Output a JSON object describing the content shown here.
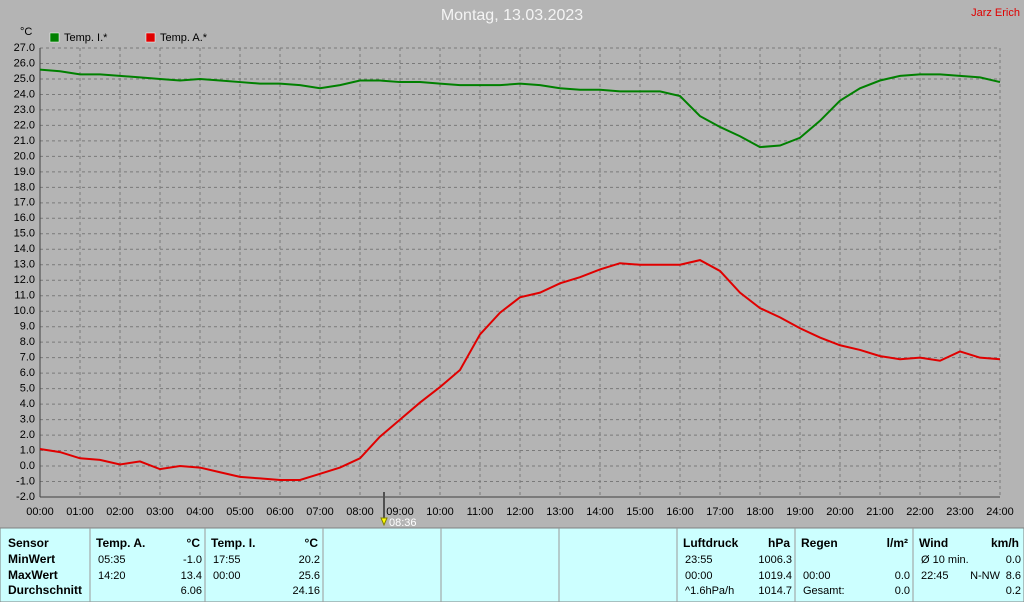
{
  "chart_data": {
    "type": "line",
    "title": "Montag, 13.03.2023",
    "author": "Jarz Erich",
    "y_label": "°C",
    "x": [
      0,
      0.5,
      1,
      1.5,
      2,
      2.5,
      3,
      3.5,
      4,
      4.5,
      5,
      5.5,
      6,
      6.5,
      7,
      7.5,
      8,
      8.5,
      9,
      9.5,
      10,
      10.5,
      11,
      11.5,
      12,
      12.5,
      13,
      13.5,
      14,
      14.5,
      15,
      15.5,
      16,
      16.5,
      17,
      17.5,
      18,
      18.5,
      19,
      19.5,
      20,
      20.5,
      21,
      21.5,
      22,
      22.5,
      23,
      23.5,
      24
    ],
    "series": [
      {
        "name": "Temp. I.*",
        "color": "#008000",
        "values": [
          25.6,
          25.5,
          25.3,
          25.3,
          25.2,
          25.1,
          25.0,
          24.9,
          25.0,
          24.9,
          24.8,
          24.7,
          24.7,
          24.6,
          24.4,
          24.6,
          24.9,
          24.9,
          24.8,
          24.8,
          24.7,
          24.6,
          24.6,
          24.6,
          24.7,
          24.6,
          24.4,
          24.3,
          24.3,
          24.2,
          24.2,
          24.2,
          23.9,
          22.6,
          21.9,
          21.3,
          20.6,
          20.7,
          21.2,
          22.3,
          23.6,
          24.4,
          24.9,
          25.2,
          25.3,
          25.3,
          25.2,
          25.1,
          24.8
        ]
      },
      {
        "name": "Temp. A.*",
        "color": "#e00000",
        "values": [
          1.1,
          0.9,
          0.5,
          0.4,
          0.1,
          0.3,
          -0.2,
          0.0,
          -0.1,
          -0.4,
          -0.7,
          -0.8,
          -0.9,
          -0.9,
          -0.5,
          -0.1,
          0.5,
          1.9,
          3.0,
          4.1,
          5.1,
          6.2,
          8.5,
          9.9,
          10.9,
          11.2,
          11.8,
          12.2,
          12.7,
          13.1,
          13.0,
          13.0,
          13.0,
          13.3,
          12.6,
          11.2,
          10.2,
          9.6,
          8.9,
          8.3,
          7.8,
          7.5,
          7.1,
          6.9,
          7.0,
          6.8,
          7.4,
          7.0,
          6.9
        ]
      }
    ],
    "xlim": [
      0,
      24
    ],
    "xticks": [
      {
        "value": 0,
        "label": "00:00"
      },
      {
        "value": 1,
        "label": "01:00"
      },
      {
        "value": 2,
        "label": "02:00"
      },
      {
        "value": 3,
        "label": "03:00"
      },
      {
        "value": 4,
        "label": "04:00"
      },
      {
        "value": 5,
        "label": "05:00"
      },
      {
        "value": 6,
        "label": "06:00"
      },
      {
        "value": 7,
        "label": "07:00"
      },
      {
        "value": 8,
        "label": "08:00"
      },
      {
        "value": 9,
        "label": "09:00"
      },
      {
        "value": 10,
        "label": "10:00"
      },
      {
        "value": 11,
        "label": "11:00"
      },
      {
        "value": 12,
        "label": "12:00"
      },
      {
        "value": 13,
        "label": "13:00"
      },
      {
        "value": 14,
        "label": "14:00"
      },
      {
        "value": 15,
        "label": "15:00"
      },
      {
        "value": 16,
        "label": "16:00"
      },
      {
        "value": 17,
        "label": "17:00"
      },
      {
        "value": 18,
        "label": "18:00"
      },
      {
        "value": 19,
        "label": "19:00"
      },
      {
        "value": 20,
        "label": "20:00"
      },
      {
        "value": 21,
        "label": "21:00"
      },
      {
        "value": 22,
        "label": "22:00"
      },
      {
        "value": 23,
        "label": "23:00"
      },
      {
        "value": 24,
        "label": "24:00"
      }
    ],
    "ylim": [
      -2,
      27
    ],
    "yticks": [
      {
        "value": -2,
        "label": "-2.0"
      },
      {
        "value": -1,
        "label": "-1.0"
      },
      {
        "value": 0,
        "label": "0.0"
      },
      {
        "value": 1,
        "label": "1.0"
      },
      {
        "value": 2,
        "label": "2.0"
      },
      {
        "value": 3,
        "label": "3.0"
      },
      {
        "value": 4,
        "label": "4.0"
      },
      {
        "value": 5,
        "label": "5.0"
      },
      {
        "value": 6,
        "label": "6.0"
      },
      {
        "value": 7,
        "label": "7.0"
      },
      {
        "value": 8,
        "label": "8.0"
      },
      {
        "value": 9,
        "label": "9.0"
      },
      {
        "value": 10,
        "label": "10.0"
      },
      {
        "value": 11,
        "label": "11.0"
      },
      {
        "value": 12,
        "label": "12.0"
      },
      {
        "value": 13,
        "label": "13.0"
      },
      {
        "value": 14,
        "label": "14.0"
      },
      {
        "value": 15,
        "label": "15.0"
      },
      {
        "value": 16,
        "label": "16.0"
      },
      {
        "value": 17,
        "label": "17.0"
      },
      {
        "value": 18,
        "label": "18.0"
      },
      {
        "value": 19,
        "label": "19.0"
      },
      {
        "value": 20,
        "label": "20.0"
      },
      {
        "value": 21,
        "label": "21.0"
      },
      {
        "value": 22,
        "label": "22.0"
      },
      {
        "value": 23,
        "label": "23.0"
      },
      {
        "value": 24,
        "label": "24.0"
      },
      {
        "value": 25,
        "label": "25.0"
      },
      {
        "value": 26,
        "label": "26.0"
      },
      {
        "value": 27,
        "label": "27.0"
      }
    ],
    "grid": true,
    "marker": {
      "value": 8.6,
      "label": "08:36"
    }
  },
  "table": {
    "sensor_header": "Sensor",
    "row_labels": [
      "MinWert",
      "MaxWert",
      "Durchschnitt"
    ],
    "groups": [
      {
        "name": "Temp. A.",
        "unit": "°C",
        "rows": [
          [
            "05:35",
            "-1.0"
          ],
          [
            "14:20",
            "13.4"
          ],
          [
            null,
            "6.06"
          ]
        ]
      },
      {
        "name": "Temp. I.",
        "unit": "°C",
        "rows": [
          [
            "17:55",
            "20.2"
          ],
          [
            "00:00",
            "25.6"
          ],
          [
            null,
            "24.16"
          ]
        ]
      },
      {
        "name": "Luftdruck",
        "unit": "hPa",
        "rows": [
          [
            "23:55",
            "1006.3"
          ],
          [
            "00:00",
            "1019.4"
          ],
          [
            "^1.6hPa/h",
            "1014.7"
          ]
        ]
      },
      {
        "name": "Regen",
        "unit": "l/m²",
        "rows": [
          [
            null,
            null
          ],
          [
            "00:00",
            "0.0"
          ],
          [
            "Gesamt:",
            "0.0"
          ]
        ]
      },
      {
        "name": "Wind",
        "unit": "km/h",
        "rows": [
          [
            "Ø 10 min.",
            "0.0"
          ],
          [
            "22:45",
            "N-NW",
            "8.6"
          ],
          [
            null,
            "0.2"
          ]
        ]
      }
    ]
  }
}
